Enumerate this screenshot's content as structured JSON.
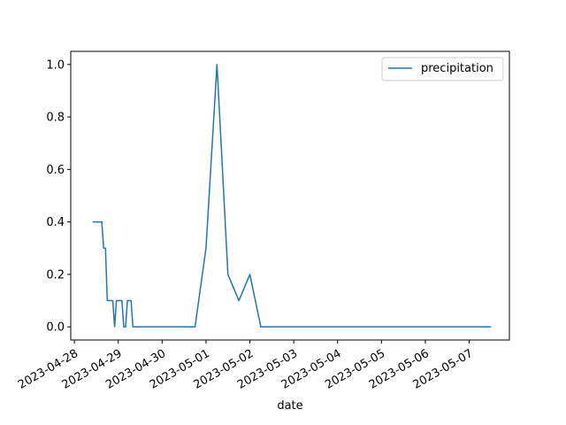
{
  "chart_data": {
    "type": "line",
    "title": "",
    "xlabel": "date",
    "ylabel": "",
    "x_tick_labels": [
      "2023-04-28",
      "2023-04-29",
      "2023-04-30",
      "2023-05-01",
      "2023-05-02",
      "2023-05-03",
      "2023-05-04",
      "2023-05-05",
      "2023-05-06",
      "2023-05-07"
    ],
    "y_tick_labels": [
      "0.0",
      "0.2",
      "0.4",
      "0.6",
      "0.8",
      "1.0"
    ],
    "xlim": [
      "2023-04-27 22:00",
      "2023-05-07 22:00"
    ],
    "ylim": [
      -0.05,
      1.05
    ],
    "grid": false,
    "legend_position": "top-right",
    "series": [
      {
        "name": "precipitation",
        "color": "#1f77b4",
        "points": [
          {
            "x": "2023-04-28 10:00",
            "y": 0.4
          },
          {
            "x": "2023-04-28 15:00",
            "y": 0.4
          },
          {
            "x": "2023-04-28 16:00",
            "y": 0.3
          },
          {
            "x": "2023-04-28 17:00",
            "y": 0.3
          },
          {
            "x": "2023-04-28 18:00",
            "y": 0.1
          },
          {
            "x": "2023-04-28 21:00",
            "y": 0.1
          },
          {
            "x": "2023-04-28 22:00",
            "y": 0.0
          },
          {
            "x": "2023-04-28 23:00",
            "y": 0.1
          },
          {
            "x": "2023-04-29 02:00",
            "y": 0.1
          },
          {
            "x": "2023-04-29 03:00",
            "y": 0.0
          },
          {
            "x": "2023-04-29 04:00",
            "y": 0.0
          },
          {
            "x": "2023-04-29 05:00",
            "y": 0.1
          },
          {
            "x": "2023-04-29 07:00",
            "y": 0.1
          },
          {
            "x": "2023-04-29 08:00",
            "y": 0.0
          },
          {
            "x": "2023-04-30 18:00",
            "y": 0.0
          },
          {
            "x": "2023-05-01 00:00",
            "y": 0.3
          },
          {
            "x": "2023-05-01 06:00",
            "y": 1.0
          },
          {
            "x": "2023-05-01 12:00",
            "y": 0.2
          },
          {
            "x": "2023-05-01 18:00",
            "y": 0.1
          },
          {
            "x": "2023-05-02 00:00",
            "y": 0.2
          },
          {
            "x": "2023-05-02 06:00",
            "y": 0.0
          },
          {
            "x": "2023-05-07 12:00",
            "y": 0.0
          }
        ]
      }
    ]
  }
}
